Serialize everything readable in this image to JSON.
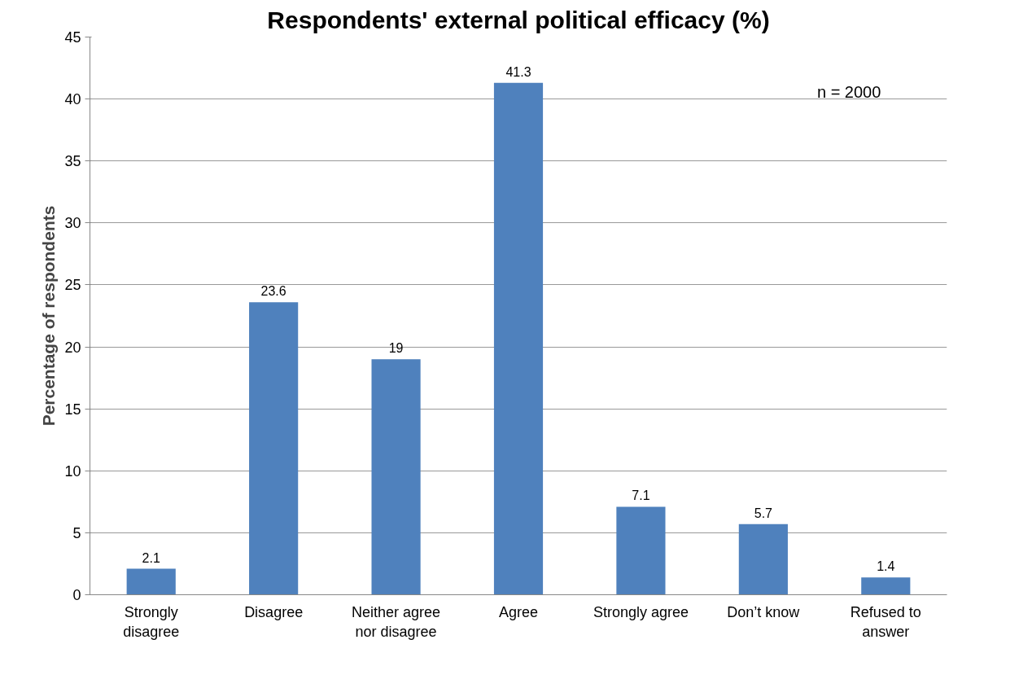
{
  "chart_data": {
    "type": "bar",
    "title": "Respondents' external political efficacy (%)",
    "ylabel": "Percentage of respondents",
    "categories": [
      "Strongly disagree",
      "Disagree",
      "Neither agree nor disagree",
      "Agree",
      "Strongly agree",
      "Don’t know",
      "Refused to answer"
    ],
    "values": [
      2.1,
      23.6,
      19,
      41.3,
      7.1,
      5.7,
      1.4
    ],
    "color": "#4f81bd",
    "ylim": [
      0,
      45
    ],
    "yticks": [
      0,
      5,
      10,
      15,
      20,
      25,
      30,
      35,
      40,
      45
    ],
    "grid": "y",
    "data_labels": true,
    "annotations": [
      "n = 2000"
    ]
  }
}
